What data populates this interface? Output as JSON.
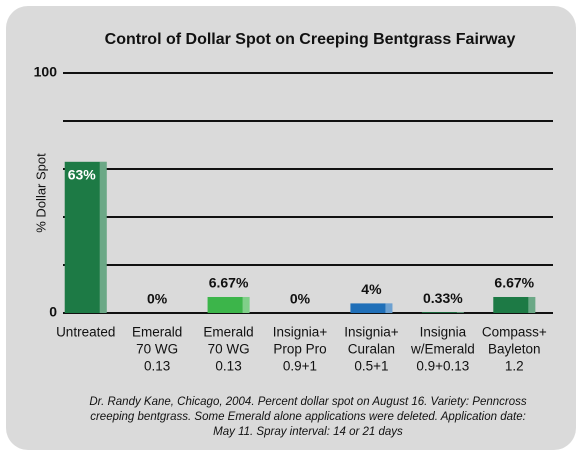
{
  "chart_data": {
    "type": "bar",
    "title": "Control of Dollar Spot on Creeping Bentgrass Fairway",
    "y_label": "% Dollar Spot",
    "categories": [
      [
        "Untreated"
      ],
      [
        "Emerald",
        "70 WG",
        "0.13"
      ],
      [
        "Emerald",
        "70 WG",
        "0.13"
      ],
      [
        "Insignia+",
        "Prop Pro",
        "0.9+1"
      ],
      [
        "Insignia+",
        "Curalan",
        "0.5+1"
      ],
      [
        "Insignia",
        "w/Emerald",
        "0.9+0.13"
      ],
      [
        "Compass+",
        "Bayleton",
        "1.2"
      ]
    ],
    "values": [
      63,
      0,
      6.67,
      0,
      4,
      0.33,
      6.67
    ],
    "value_labels": [
      "63%",
      "0%",
      "6.67%",
      "0%",
      "4%",
      "0.33%",
      "6.67%"
    ],
    "colors": [
      "#1d7a45",
      "#1d7a45",
      "#3cb54a",
      "#1d7a45",
      "#1f6fb8",
      "#1d7a45",
      "#1d7a45"
    ],
    "ylim": [
      0,
      100
    ],
    "yticks": [
      0,
      {
        "value": 20,
        "label": null
      },
      {
        "value": 40,
        "label": null
      },
      {
        "value": 60,
        "label": null
      },
      {
        "value": 80,
        "label": null
      },
      100
    ],
    "grid": true,
    "note": [
      "Dr. Randy Kane, Chicago, 2004. Percent dollar spot on August 16. Variety: Penncross",
      "creeping bentgrass. Some Emerald alone applications were deleted. Application date:",
      "May 11. Spray interval: 14 or 21 days"
    ]
  }
}
